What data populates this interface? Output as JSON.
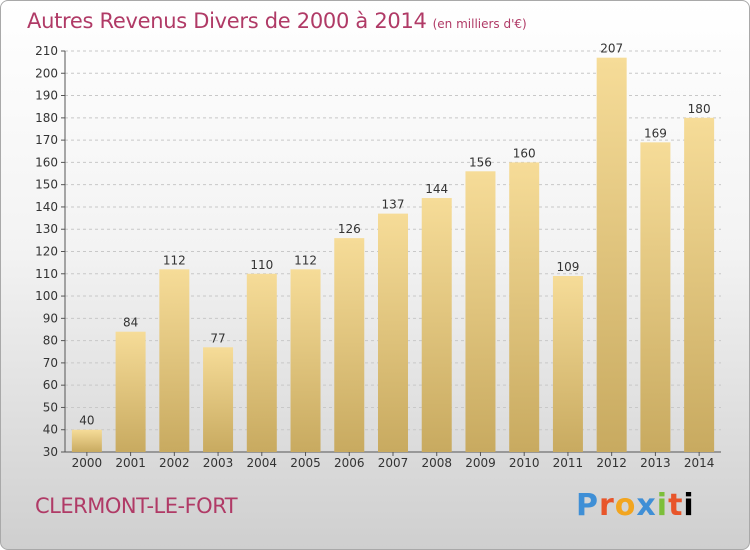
{
  "title": "Autres Revenus Divers de 2000 à 2014",
  "unit": "(en milliers d'€)",
  "town": "CLERMONT-LE-FORT",
  "logo": [
    "P",
    "r",
    "o",
    "x",
    "i",
    "t",
    "i"
  ],
  "colors": {
    "title": "#b03a66",
    "bar_light": "#f6dc98",
    "bar_dark": "#c8aa60",
    "grid": "#c8c8c8"
  },
  "chart_data": {
    "type": "bar",
    "categories": [
      "2000",
      "2001",
      "2002",
      "2003",
      "2004",
      "2005",
      "2006",
      "2007",
      "2008",
      "2009",
      "2010",
      "2011",
      "2012",
      "2013",
      "2014"
    ],
    "values": [
      40,
      84,
      112,
      77,
      110,
      112,
      126,
      137,
      144,
      156,
      160,
      109,
      207,
      169,
      180
    ],
    "ylim": [
      30,
      210
    ],
    "yticks": [
      30,
      40,
      50,
      60,
      70,
      80,
      90,
      100,
      110,
      120,
      130,
      140,
      150,
      160,
      170,
      180,
      190,
      200,
      210
    ],
    "grid": true,
    "xlabel": "",
    "ylabel": ""
  }
}
